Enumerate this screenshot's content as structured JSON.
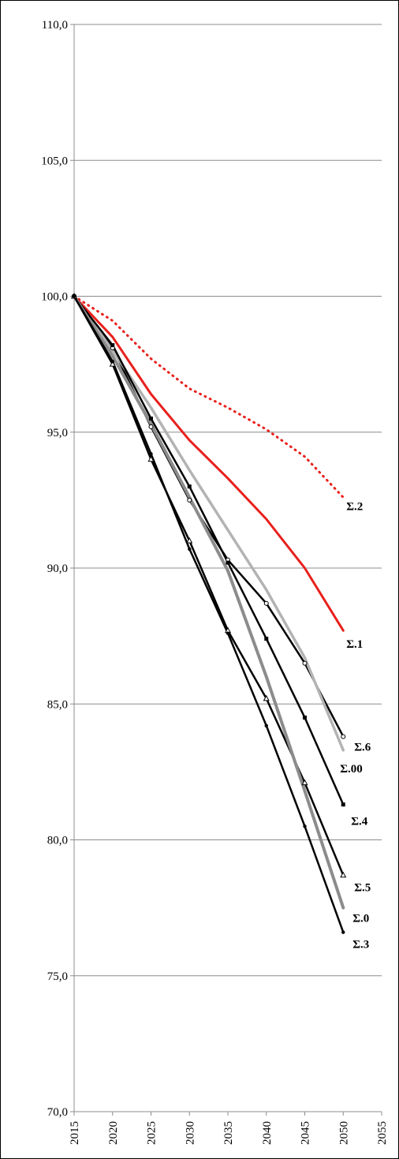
{
  "chart_data": {
    "type": "line",
    "title": "",
    "xlabel": "",
    "ylabel": "",
    "xlim": [
      2015,
      2055
    ],
    "ylim": [
      70,
      110
    ],
    "grid": "horizontal",
    "legend": "none (labels at line ends)",
    "x_ticks": [
      2015,
      2020,
      2025,
      2030,
      2035,
      2040,
      2045,
      2050,
      2055
    ],
    "x_tick_labels": [
      "2015",
      "2020",
      "2025",
      "2030",
      "2035",
      "2040",
      "2045",
      "2050",
      "2055"
    ],
    "y_ticks": [
      70,
      75,
      80,
      85,
      90,
      95,
      100,
      105,
      110
    ],
    "y_tick_labels": [
      "70,0",
      "75,0",
      "80,0",
      "85,0",
      "90,0",
      "95,0",
      "100,0",
      "105,0",
      "110,0"
    ],
    "x": [
      2015,
      2020,
      2025,
      2030,
      2035,
      2040,
      2045,
      2050
    ],
    "series": [
      {
        "name": "Σ.2",
        "color": "#e8201c",
        "dash": "dotted",
        "width": 3,
        "marker": "none",
        "values": [
          100.0,
          99.1,
          97.7,
          96.6,
          95.9,
          95.1,
          94.1,
          92.6
        ]
      },
      {
        "name": "Σ.1",
        "color": "#e8201c",
        "dash": "solid",
        "width": 3,
        "marker": "none",
        "values": [
          100.0,
          98.5,
          96.4,
          94.7,
          93.3,
          91.8,
          90.0,
          87.7
        ]
      },
      {
        "name": "Σ.6",
        "color": "#000000",
        "dash": "solid",
        "width": 2.5,
        "marker": "open-circle",
        "values": [
          100.0,
          98.1,
          95.2,
          92.5,
          90.3,
          88.7,
          86.5,
          83.8
        ]
      },
      {
        "name": "Σ.00",
        "color": "#b3b3b3",
        "dash": "solid",
        "width": 3.5,
        "marker": "none",
        "values": [
          100.0,
          98.0,
          95.9,
          93.6,
          91.4,
          89.2,
          86.7,
          83.3
        ]
      },
      {
        "name": "Σ.4",
        "color": "#000000",
        "dash": "solid",
        "width": 2.5,
        "marker": "square",
        "values": [
          100.0,
          98.2,
          95.5,
          93.0,
          90.2,
          87.4,
          84.5,
          81.3
        ]
      },
      {
        "name": "Σ.5",
        "color": "#000000",
        "dash": "solid",
        "width": 2.5,
        "marker": "open-triangle",
        "values": [
          100.0,
          97.5,
          94.0,
          91.0,
          87.7,
          85.2,
          82.1,
          78.7
        ]
      },
      {
        "name": "Σ.0",
        "color": "#8c8c8c",
        "dash": "solid",
        "width": 4,
        "marker": "none",
        "values": [
          100.0,
          97.8,
          95.3,
          92.6,
          89.9,
          86.0,
          81.8,
          77.5
        ]
      },
      {
        "name": "Σ.3",
        "color": "#000000",
        "dash": "solid",
        "width": 2.5,
        "marker": "dot",
        "values": [
          100.0,
          97.6,
          94.2,
          90.7,
          87.6,
          84.2,
          80.5,
          76.6
        ]
      }
    ]
  }
}
